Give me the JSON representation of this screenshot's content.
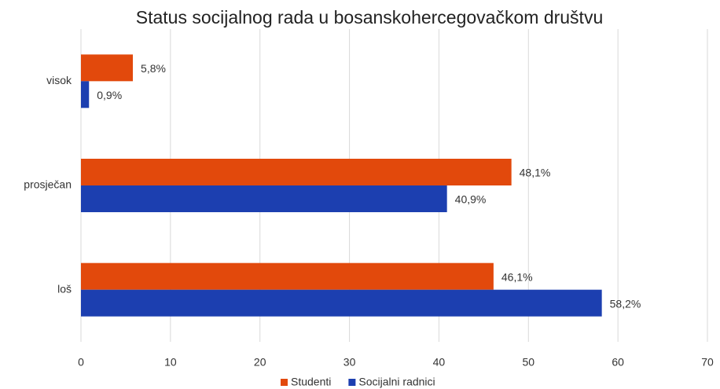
{
  "chart_data": {
    "type": "bar",
    "orientation": "horizontal",
    "title": "Status socijalnog rada u bosanskohercegovačkom  društvu",
    "categories": [
      "visok",
      "prosječan",
      "loš"
    ],
    "series": [
      {
        "name": "Studenti",
        "color": "#e2490c",
        "values": [
          5.8,
          48.1,
          46.1
        ],
        "value_labels": [
          "5,8%",
          "48,1%",
          "46,1%"
        ]
      },
      {
        "name": "Socijalni radnici",
        "color": "#1c3fb0",
        "values": [
          0.9,
          40.9,
          58.2
        ],
        "value_labels": [
          "0,9%",
          "40,9%",
          "58,2%"
        ]
      }
    ],
    "xlim": [
      0,
      70
    ],
    "xticks": [
      0,
      10,
      20,
      30,
      40,
      50,
      60,
      70
    ],
    "grid": true,
    "legend": "bottom"
  }
}
